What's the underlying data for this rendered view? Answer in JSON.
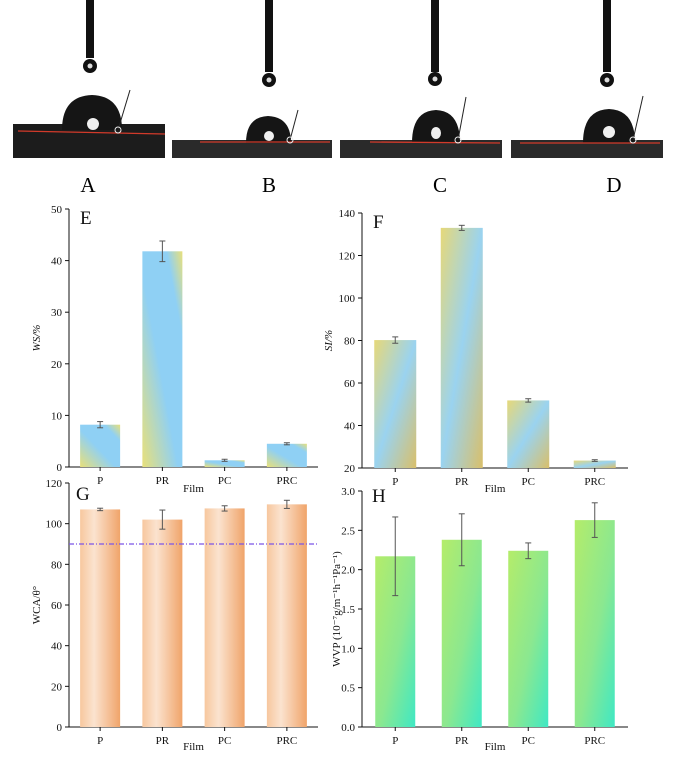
{
  "photos": {
    "labels": [
      "A",
      "B",
      "C",
      "D"
    ]
  },
  "chart_data": [
    {
      "panel": "E",
      "type": "bar",
      "categories": [
        "P",
        "PR",
        "PC",
        "PRC"
      ],
      "values": [
        8.2,
        41.8,
        1.3,
        4.5
      ],
      "errors": [
        0.6,
        2.0,
        0.2,
        0.2
      ],
      "xlabel": "Film",
      "ylabel": "WS/%",
      "ylim": [
        0,
        50
      ],
      "yticks": [
        "0",
        "10",
        "20",
        "30",
        "40",
        "50"
      ],
      "fill": "yellow-blue"
    },
    {
      "panel": "F",
      "type": "bar",
      "categories": [
        "P",
        "PR",
        "PC",
        "PRC"
      ],
      "values": [
        80.2,
        133.0,
        51.8,
        23.5
      ],
      "errors": [
        1.5,
        1.2,
        0.8,
        0.4
      ],
      "xlabel": "Film",
      "ylabel": "SI/%",
      "ylim": [
        20,
        140
      ],
      "yticks": [
        "20",
        "40",
        "60",
        "80",
        "100",
        "120",
        "140"
      ],
      "fill": "yellow-blue"
    },
    {
      "panel": "G",
      "type": "bar",
      "categories": [
        "P",
        "PR",
        "PC",
        "PRC"
      ],
      "values": [
        107.0,
        102.0,
        107.5,
        109.5
      ],
      "errors": [
        0.6,
        4.7,
        1.3,
        2.0
      ],
      "xlabel": "Film",
      "ylabel": "WCA/θ°",
      "ylim": [
        0,
        120
      ],
      "yticks": [
        "0",
        "20",
        "40",
        "60",
        "80",
        "100",
        "120"
      ],
      "reference_line": 90,
      "fill": "orange"
    },
    {
      "panel": "H",
      "type": "bar",
      "categories": [
        "P",
        "PR",
        "PC",
        "PRC"
      ],
      "values": [
        2.17,
        2.38,
        2.24,
        2.63
      ],
      "errors": [
        0.5,
        0.33,
        0.1,
        0.22
      ],
      "xlabel": "Film",
      "ylabel": "WVP (10⁻⁷g/m⁻¹h⁻¹Pa⁻¹)",
      "ylim": [
        0,
        3.0
      ],
      "yticks": [
        "0.0",
        "0.5",
        "1.0",
        "1.5",
        "2.0",
        "2.5",
        "3.0"
      ],
      "fill": "green-cyan"
    }
  ],
  "colors": {
    "reference_line": "#7b55e8",
    "bar_yellow": "#e8e07a",
    "bar_blue": "#8fd0f4",
    "bar_orange_dark": "#f0a46a",
    "bar_orange_light": "#fbe3cf",
    "bar_green": "#a6ea6a",
    "bar_cyan": "#3fe8c4"
  }
}
